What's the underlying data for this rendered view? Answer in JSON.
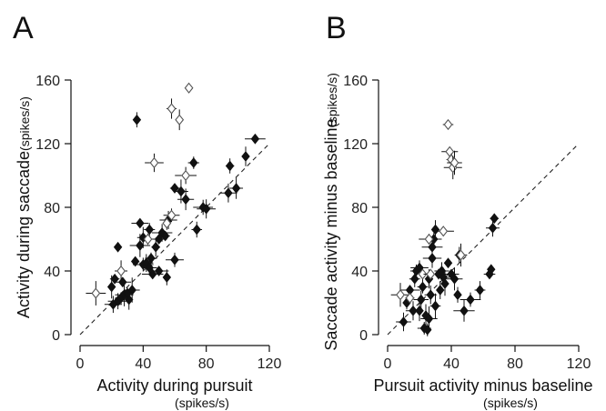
{
  "chart_data": [
    {
      "type": "scatter",
      "panel_label": "A",
      "xlabel": "Activity during pursuit",
      "xunit": "(spikes/s)",
      "ylabel": "Activity during saccade",
      "yunit": "(spikes/s)",
      "xlim": [
        0,
        120
      ],
      "ylim": [
        0,
        160
      ],
      "xticks": [
        "0",
        "40",
        "80",
        "120"
      ],
      "yticks": [
        "0",
        "40",
        "80",
        "120",
        "160"
      ],
      "diagonal": "unity",
      "grid": false,
      "series": [
        {
          "marker": "filled-diamond",
          "points": [
            [
              21,
              19
            ],
            [
              24,
              21
            ],
            [
              20,
              30
            ],
            [
              22,
              35
            ],
            [
              26,
              23
            ],
            [
              28,
              25
            ],
            [
              31,
              22
            ],
            [
              27,
              33
            ],
            [
              30,
              26
            ],
            [
              33,
              28
            ],
            [
              24,
              55
            ],
            [
              36,
              135
            ],
            [
              35,
              46
            ],
            [
              38,
              56
            ],
            [
              40,
              61
            ],
            [
              40,
              44
            ],
            [
              42,
              45
            ],
            [
              44,
              42
            ],
            [
              45,
              48
            ],
            [
              48,
              55
            ],
            [
              46,
              38
            ],
            [
              50,
              40
            ],
            [
              44,
              66
            ],
            [
              52,
              64
            ],
            [
              50,
              60
            ],
            [
              54,
              62
            ],
            [
              56,
              72
            ],
            [
              55,
              36
            ],
            [
              60,
              92
            ],
            [
              60,
              47
            ],
            [
              64,
              90
            ],
            [
              67,
              85
            ],
            [
              72,
              108
            ],
            [
              74,
              66
            ],
            [
              78,
              80
            ],
            [
              80,
              79
            ],
            [
              94,
              89
            ],
            [
              95,
              106
            ],
            [
              99,
              92
            ],
            [
              105,
              112
            ],
            [
              111,
              123
            ],
            [
              38,
              70
            ]
          ]
        },
        {
          "marker": "open-diamond",
          "points": [
            [
              10,
              26
            ],
            [
              26,
              40
            ],
            [
              47,
              108
            ],
            [
              58,
              142
            ],
            [
              63,
              135
            ],
            [
              69,
              155
            ],
            [
              58,
              75
            ],
            [
              55,
              70
            ],
            [
              67,
              100
            ],
            [
              43,
              60
            ]
          ]
        }
      ]
    },
    {
      "type": "scatter",
      "panel_label": "B",
      "xlabel": "Pursuit activity minus baseline",
      "xunit": "(spikes/s)",
      "ylabel": "Saccade activity minus baseline",
      "yunit": "(spikes/s)",
      "xlim": [
        0,
        120
      ],
      "ylim": [
        0,
        160
      ],
      "xticks": [
        "0",
        "40",
        "80",
        "120"
      ],
      "yticks": [
        "0",
        "40",
        "80",
        "120",
        "160"
      ],
      "diagonal": "unity",
      "grid": false,
      "series": [
        {
          "marker": "filled-diamond",
          "points": [
            [
              10,
              8
            ],
            [
              12,
              20
            ],
            [
              14,
              28
            ],
            [
              16,
              15
            ],
            [
              17,
              35
            ],
            [
              18,
              40
            ],
            [
              20,
              42
            ],
            [
              21,
              22
            ],
            [
              22,
              30
            ],
            [
              23,
              4
            ],
            [
              24,
              12
            ],
            [
              25,
              3
            ],
            [
              26,
              35
            ],
            [
              27,
              25
            ],
            [
              28,
              48
            ],
            [
              28,
              55
            ],
            [
              29,
              60
            ],
            [
              30,
              66
            ],
            [
              30,
              18
            ],
            [
              32,
              38
            ],
            [
              33,
              28
            ],
            [
              34,
              40
            ],
            [
              35,
              36
            ],
            [
              36,
              32
            ],
            [
              38,
              45
            ],
            [
              40,
              38
            ],
            [
              42,
              35
            ],
            [
              44,
              25
            ],
            [
              45,
              50
            ],
            [
              48,
              15
            ],
            [
              52,
              22
            ],
            [
              58,
              28
            ],
            [
              64,
              38
            ],
            [
              65,
              41
            ],
            [
              66,
              67
            ],
            [
              67,
              73
            ],
            [
              26,
              10
            ],
            [
              20,
              15
            ]
          ]
        },
        {
          "marker": "open-diamond",
          "points": [
            [
              8,
              25
            ],
            [
              14,
              23
            ],
            [
              22,
              38
            ],
            [
              27,
              38
            ],
            [
              35,
              65
            ],
            [
              38,
              132
            ],
            [
              39,
              115
            ],
            [
              40,
              110
            ],
            [
              41,
              105
            ],
            [
              42,
              108
            ],
            [
              46,
              50
            ],
            [
              26,
              60
            ]
          ]
        }
      ]
    }
  ]
}
